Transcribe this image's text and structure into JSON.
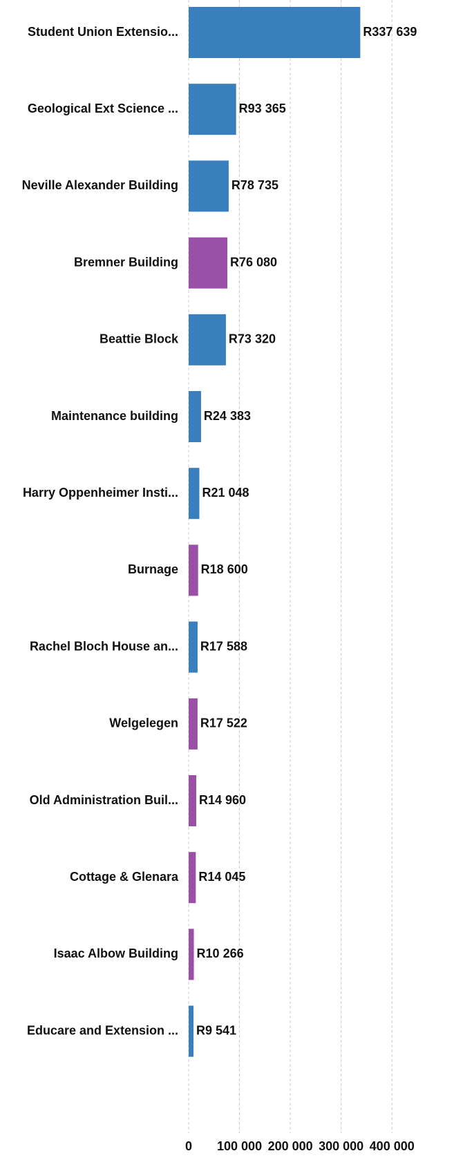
{
  "chart_data": {
    "type": "barh",
    "categories": [
      "Student Union Extensio...",
      "Geological Ext Science ...",
      "Neville Alexander Building",
      "Bremner Building",
      "Beattie Block",
      "Maintenance building",
      "Harry Oppenheimer Insti...",
      "Burnage",
      "Rachel Bloch House an...",
      "Welgelegen",
      "Old Administration Buil...",
      "Cottage & Glenara",
      "Isaac Albow Building",
      "Educare and Extension ..."
    ],
    "values": [
      337639,
      93365,
      78735,
      76080,
      73320,
      24383,
      21048,
      18600,
      17588,
      17522,
      14960,
      14045,
      10266,
      9541
    ],
    "value_labels": [
      "R337 639",
      "R93 365",
      "R78 735",
      "R76 080",
      "R73 320",
      "R24 383",
      "R21 048",
      "R18 600",
      "R17 588",
      "R17 522",
      "R14 960",
      "R14 045",
      "R10 266",
      "R9 541"
    ],
    "colors": [
      "#3a7fbd",
      "#3a7fbd",
      "#3a7fbd",
      "#9a50a6",
      "#3a7fbd",
      "#3a7fbd",
      "#3a7fbd",
      "#9a50a6",
      "#3a7fbd",
      "#9a50a6",
      "#9a50a6",
      "#9a50a6",
      "#9a50a6",
      "#3a7fbd"
    ],
    "xlim": [
      0,
      450000
    ],
    "xticks": [
      0,
      {
        "value": 100000,
        "label": "100 000"
      },
      {
        "value": 200000,
        "label": "200 000"
      },
      {
        "value": 300000,
        "label": "300 000"
      },
      {
        "value": 400000,
        "label": "400 000"
      }
    ],
    "grid": true
  }
}
